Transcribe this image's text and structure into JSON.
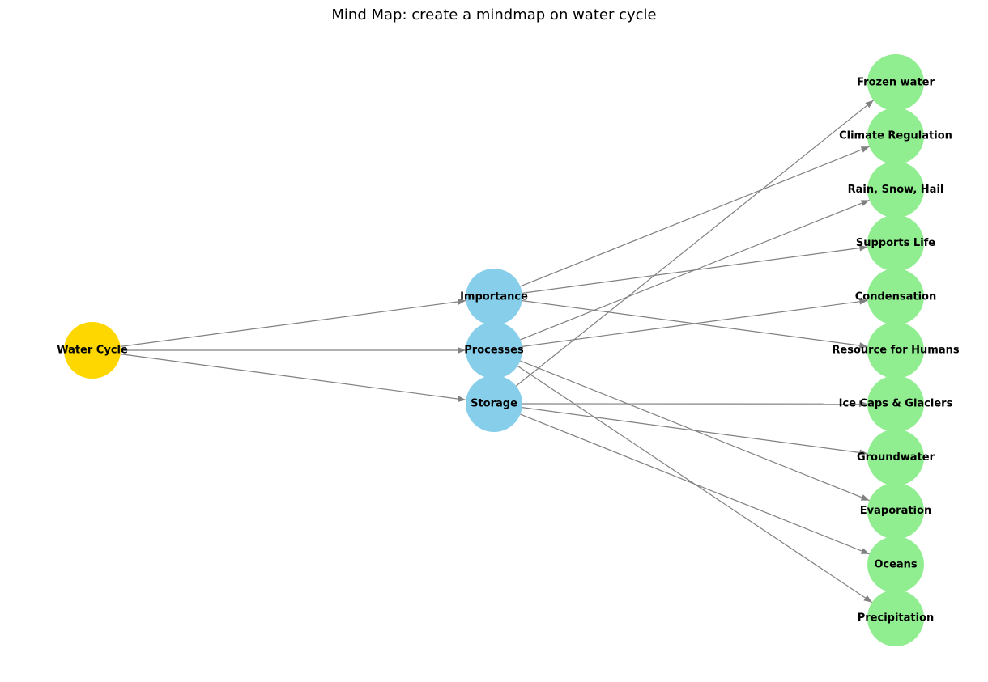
{
  "title": "Mind Map: create a mindmap on water cycle",
  "colors": {
    "root": "#ffd700",
    "category": "#87ceeb",
    "leaf": "#90ee90",
    "edge": "#808080",
    "label": "#000000"
  },
  "nodes": {
    "root": {
      "id": "water-cycle",
      "label": "Water Cycle"
    },
    "categories": [
      {
        "id": "importance",
        "label": "Importance"
      },
      {
        "id": "processes",
        "label": "Processes"
      },
      {
        "id": "storage",
        "label": "Storage"
      }
    ],
    "leaves": [
      {
        "id": "frozen-water",
        "label": "Frozen water"
      },
      {
        "id": "climate-regulation",
        "label": "Climate Regulation"
      },
      {
        "id": "rain-snow-hail",
        "label": "Rain, Snow, Hail"
      },
      {
        "id": "supports-life",
        "label": "Supports Life"
      },
      {
        "id": "condensation",
        "label": "Condensation"
      },
      {
        "id": "resource-for-humans",
        "label": "Resource for Humans"
      },
      {
        "id": "ice-caps-glaciers",
        "label": "Ice Caps & Glaciers"
      },
      {
        "id": "groundwater",
        "label": "Groundwater"
      },
      {
        "id": "evaporation",
        "label": "Evaporation"
      },
      {
        "id": "oceans",
        "label": "Oceans"
      },
      {
        "id": "precipitation",
        "label": "Precipitation"
      }
    ]
  },
  "edges": [
    [
      "water-cycle",
      "importance"
    ],
    [
      "water-cycle",
      "processes"
    ],
    [
      "water-cycle",
      "storage"
    ],
    [
      "importance",
      "climate-regulation"
    ],
    [
      "importance",
      "supports-life"
    ],
    [
      "importance",
      "resource-for-humans"
    ],
    [
      "processes",
      "rain-snow-hail"
    ],
    [
      "processes",
      "condensation"
    ],
    [
      "processes",
      "evaporation"
    ],
    [
      "processes",
      "precipitation"
    ],
    [
      "storage",
      "frozen-water"
    ],
    [
      "storage",
      "ice-caps-glaciers"
    ],
    [
      "storage",
      "groundwater"
    ],
    [
      "storage",
      "oceans"
    ]
  ]
}
